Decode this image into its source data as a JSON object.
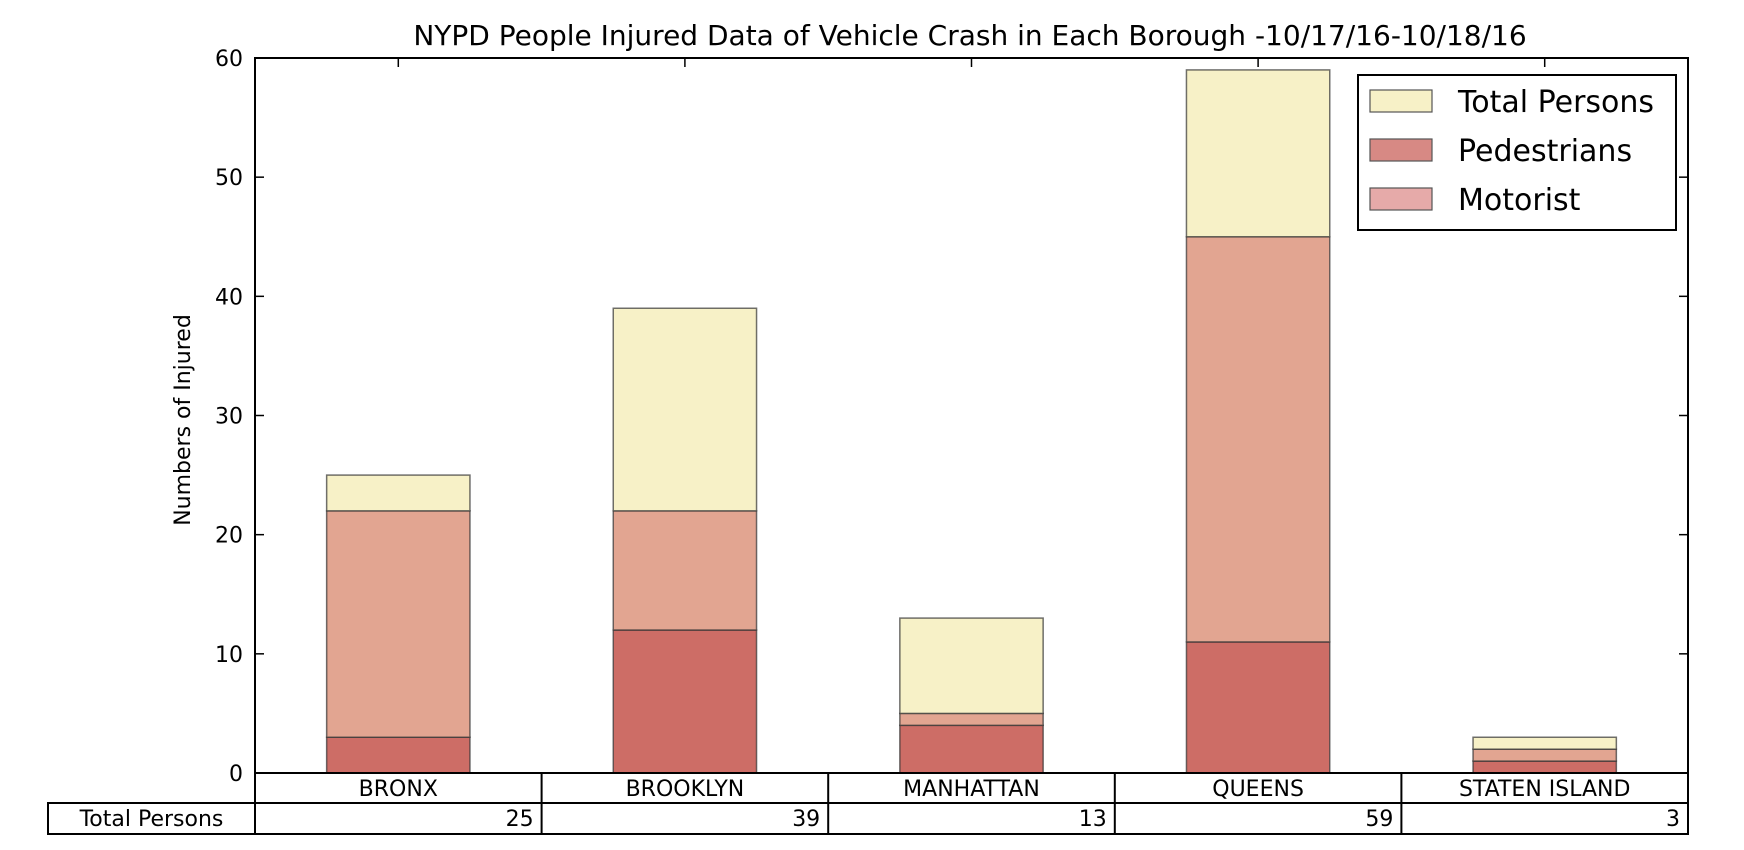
{
  "chart_data": {
    "type": "bar",
    "stacked": true,
    "title": "NYPD People Injured Data of Vehicle Crash in Each Borough -10/17/16-10/18/16",
    "xlabel": "",
    "ylabel": "Numbers of Injured",
    "ylim": [
      0,
      60
    ],
    "yticks": [
      0,
      10,
      20,
      30,
      40,
      50,
      60
    ],
    "grid": false,
    "legend_position": "top-right",
    "categories": [
      "BRONX",
      "BROOKLYN",
      "MANHATTAN",
      "QUEENS",
      "STATEN ISLAND"
    ],
    "series": [
      {
        "name": "Pedestrians",
        "values": [
          3,
          12,
          4,
          11,
          1
        ],
        "color": "#cd6d66"
      },
      {
        "name": "Motorist",
        "values": [
          19,
          10,
          1,
          34,
          1
        ],
        "color": "#e2a591"
      },
      {
        "name": "Total Persons",
        "values": [
          3,
          17,
          8,
          14,
          1
        ],
        "color": "#f7f1c7"
      }
    ],
    "legend": [
      {
        "label": "Total Persons",
        "color": "#f7f1c7"
      },
      {
        "label": "Pedestrians",
        "color": "#d78984"
      },
      {
        "label": "Motorist",
        "color": "#e6aaa9"
      }
    ],
    "table": {
      "row_label": "Total Persons",
      "values": [
        "25",
        "39",
        "13",
        "59",
        "3"
      ]
    }
  }
}
